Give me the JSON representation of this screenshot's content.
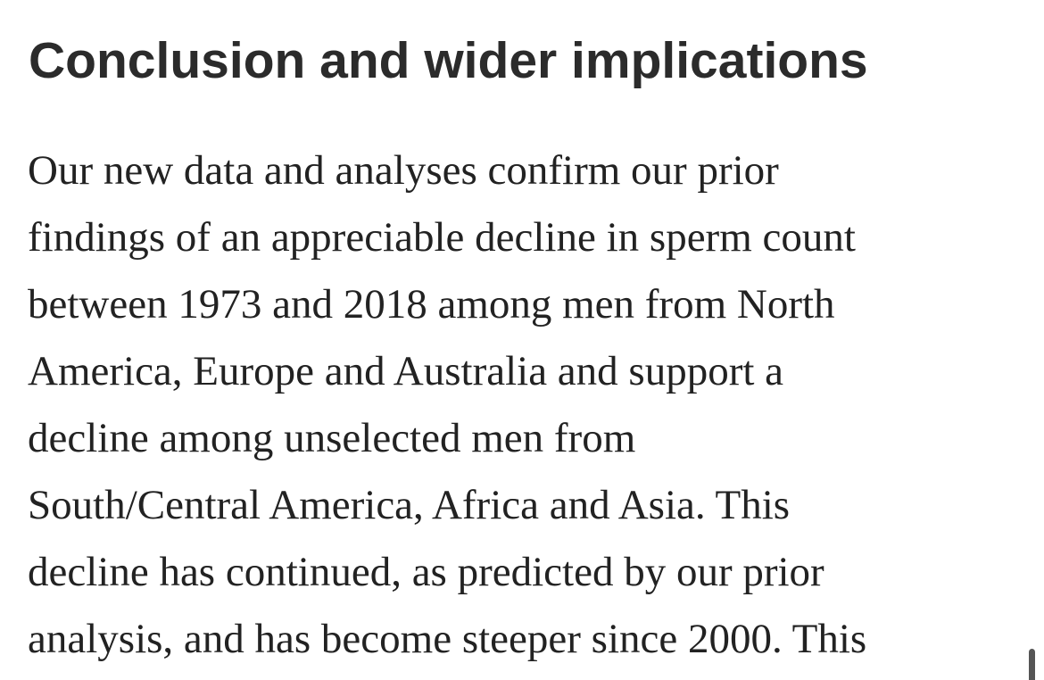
{
  "header": {
    "title": "Conclusion and wider implications"
  },
  "paragraph": {
    "lines": [
      "Our new data and analyses confirm our prior",
      "findings of an appreciable decline in sperm count",
      "between 1973 and 2018 among men from North",
      "America, Europe and Australia and support a",
      "decline among unselected men from",
      "South/Central America, Africa and Asia. This",
      "decline has continued, as predicted by our prior",
      "analysis, and has become steeper since 2000. This"
    ]
  }
}
